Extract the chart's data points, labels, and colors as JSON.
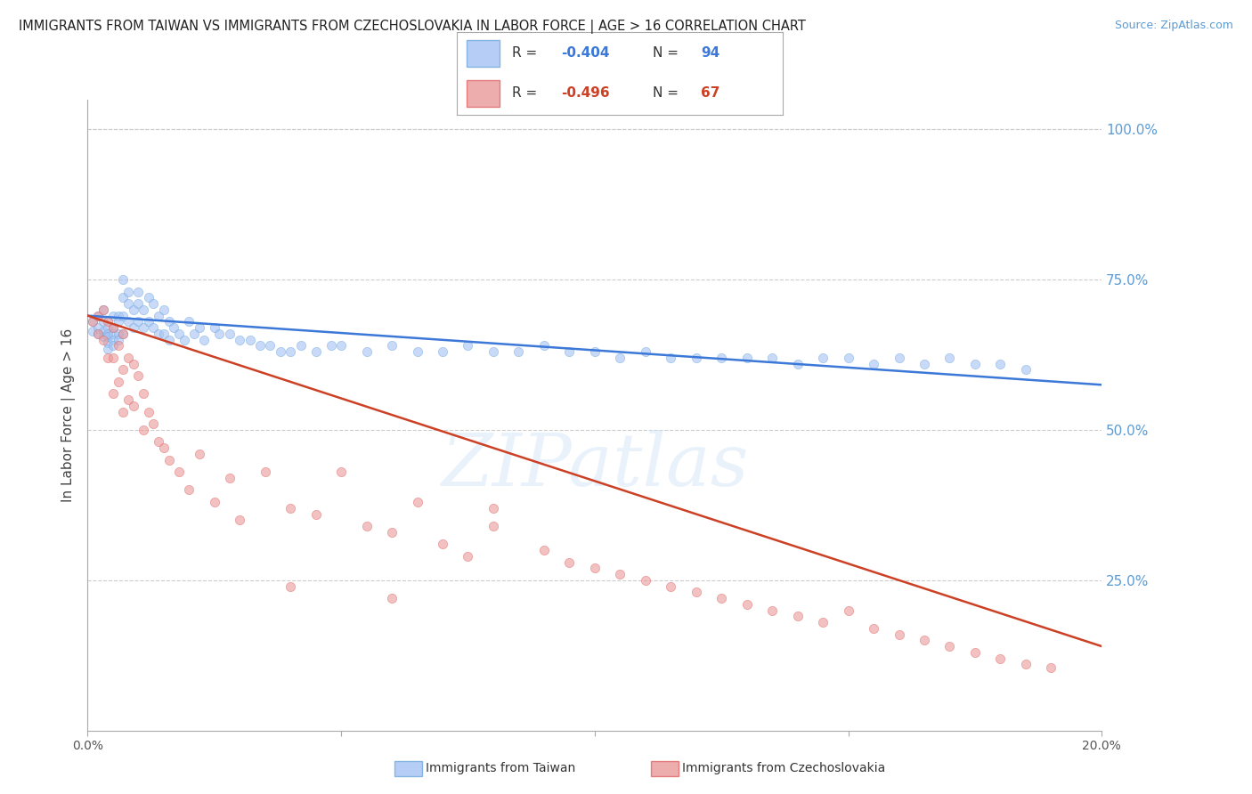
{
  "title": "IMMIGRANTS FROM TAIWAN VS IMMIGRANTS FROM CZECHOSLOVAKIA IN LABOR FORCE | AGE > 16 CORRELATION CHART",
  "source": "Source: ZipAtlas.com",
  "ylabel": "In Labor Force | Age > 16",
  "right_yticks": [
    "100.0%",
    "75.0%",
    "50.0%",
    "25.0%"
  ],
  "right_ytick_vals": [
    1.0,
    0.75,
    0.5,
    0.25
  ],
  "watermark": "ZIPatlas",
  "taiwan_color": "#a4c2f4",
  "taiwan_edge": "#6fa8dc",
  "czech_color": "#ea9999",
  "czech_edge": "#e06666",
  "taiwan_line_color": "#3c78d8",
  "czech_line_color": "#cc4125",
  "legend_taiwan_R": "-0.404",
  "legend_taiwan_N": "94",
  "legend_czech_R": "-0.496",
  "legend_czech_N": "67",
  "taiwan_scatter_x": [
    0.001,
    0.001,
    0.002,
    0.002,
    0.002,
    0.003,
    0.003,
    0.003,
    0.003,
    0.004,
    0.004,
    0.004,
    0.004,
    0.004,
    0.005,
    0.005,
    0.005,
    0.005,
    0.005,
    0.006,
    0.006,
    0.006,
    0.006,
    0.007,
    0.007,
    0.007,
    0.007,
    0.008,
    0.008,
    0.008,
    0.009,
    0.009,
    0.01,
    0.01,
    0.01,
    0.011,
    0.011,
    0.012,
    0.012,
    0.013,
    0.013,
    0.014,
    0.014,
    0.015,
    0.015,
    0.016,
    0.016,
    0.017,
    0.018,
    0.019,
    0.02,
    0.021,
    0.022,
    0.023,
    0.025,
    0.026,
    0.028,
    0.03,
    0.032,
    0.034,
    0.036,
    0.038,
    0.04,
    0.042,
    0.045,
    0.048,
    0.05,
    0.055,
    0.06,
    0.065,
    0.07,
    0.075,
    0.08,
    0.085,
    0.09,
    0.095,
    0.1,
    0.105,
    0.11,
    0.115,
    0.12,
    0.125,
    0.13,
    0.135,
    0.14,
    0.145,
    0.15,
    0.155,
    0.16,
    0.165,
    0.17,
    0.175,
    0.18,
    0.185
  ],
  "taiwan_scatter_y": [
    0.665,
    0.68,
    0.67,
    0.66,
    0.69,
    0.68,
    0.665,
    0.655,
    0.7,
    0.67,
    0.66,
    0.655,
    0.645,
    0.635,
    0.69,
    0.67,
    0.66,
    0.65,
    0.64,
    0.69,
    0.68,
    0.66,
    0.65,
    0.75,
    0.72,
    0.69,
    0.66,
    0.73,
    0.71,
    0.68,
    0.7,
    0.67,
    0.73,
    0.71,
    0.68,
    0.7,
    0.67,
    0.72,
    0.68,
    0.71,
    0.67,
    0.69,
    0.66,
    0.7,
    0.66,
    0.68,
    0.65,
    0.67,
    0.66,
    0.65,
    0.68,
    0.66,
    0.67,
    0.65,
    0.67,
    0.66,
    0.66,
    0.65,
    0.65,
    0.64,
    0.64,
    0.63,
    0.63,
    0.64,
    0.63,
    0.64,
    0.64,
    0.63,
    0.64,
    0.63,
    0.63,
    0.64,
    0.63,
    0.63,
    0.64,
    0.63,
    0.63,
    0.62,
    0.63,
    0.62,
    0.62,
    0.62,
    0.62,
    0.62,
    0.61,
    0.62,
    0.62,
    0.61,
    0.62,
    0.61,
    0.62,
    0.61,
    0.61,
    0.6
  ],
  "czech_scatter_x": [
    0.001,
    0.002,
    0.002,
    0.003,
    0.003,
    0.004,
    0.004,
    0.005,
    0.005,
    0.005,
    0.006,
    0.006,
    0.007,
    0.007,
    0.007,
    0.008,
    0.008,
    0.009,
    0.009,
    0.01,
    0.011,
    0.011,
    0.012,
    0.013,
    0.014,
    0.015,
    0.016,
    0.018,
    0.02,
    0.022,
    0.025,
    0.028,
    0.03,
    0.035,
    0.04,
    0.045,
    0.05,
    0.055,
    0.06,
    0.065,
    0.07,
    0.075,
    0.08,
    0.09,
    0.095,
    0.1,
    0.105,
    0.11,
    0.115,
    0.12,
    0.125,
    0.13,
    0.135,
    0.14,
    0.145,
    0.15,
    0.155,
    0.16,
    0.165,
    0.17,
    0.175,
    0.18,
    0.185,
    0.19,
    0.04,
    0.06,
    0.08
  ],
  "czech_scatter_y": [
    0.68,
    0.69,
    0.66,
    0.7,
    0.65,
    0.68,
    0.62,
    0.67,
    0.62,
    0.56,
    0.64,
    0.58,
    0.66,
    0.6,
    0.53,
    0.62,
    0.55,
    0.61,
    0.54,
    0.59,
    0.56,
    0.5,
    0.53,
    0.51,
    0.48,
    0.47,
    0.45,
    0.43,
    0.4,
    0.46,
    0.38,
    0.42,
    0.35,
    0.43,
    0.37,
    0.36,
    0.43,
    0.34,
    0.33,
    0.38,
    0.31,
    0.29,
    0.34,
    0.3,
    0.28,
    0.27,
    0.26,
    0.25,
    0.24,
    0.23,
    0.22,
    0.21,
    0.2,
    0.19,
    0.18,
    0.2,
    0.17,
    0.16,
    0.15,
    0.14,
    0.13,
    0.12,
    0.11,
    0.105,
    0.24,
    0.22,
    0.37
  ],
  "xlim": [
    0.0,
    0.2
  ],
  "ylim": [
    0.0,
    1.05
  ],
  "taiwan_trend_x": [
    0.0,
    0.2
  ],
  "taiwan_trend_y": [
    0.69,
    0.575
  ],
  "czech_trend_x": [
    0.0,
    0.2
  ],
  "czech_trend_y": [
    0.69,
    0.14
  ],
  "background_color": "#ffffff",
  "grid_color": "#cccccc",
  "title_fontsize": 10.5,
  "axis_label_fontsize": 11,
  "tick_fontsize": 10,
  "legend_fontsize": 11,
  "source_fontsize": 9,
  "scatter_size": 55,
  "scatter_alpha": 0.6,
  "line_width": 1.8
}
